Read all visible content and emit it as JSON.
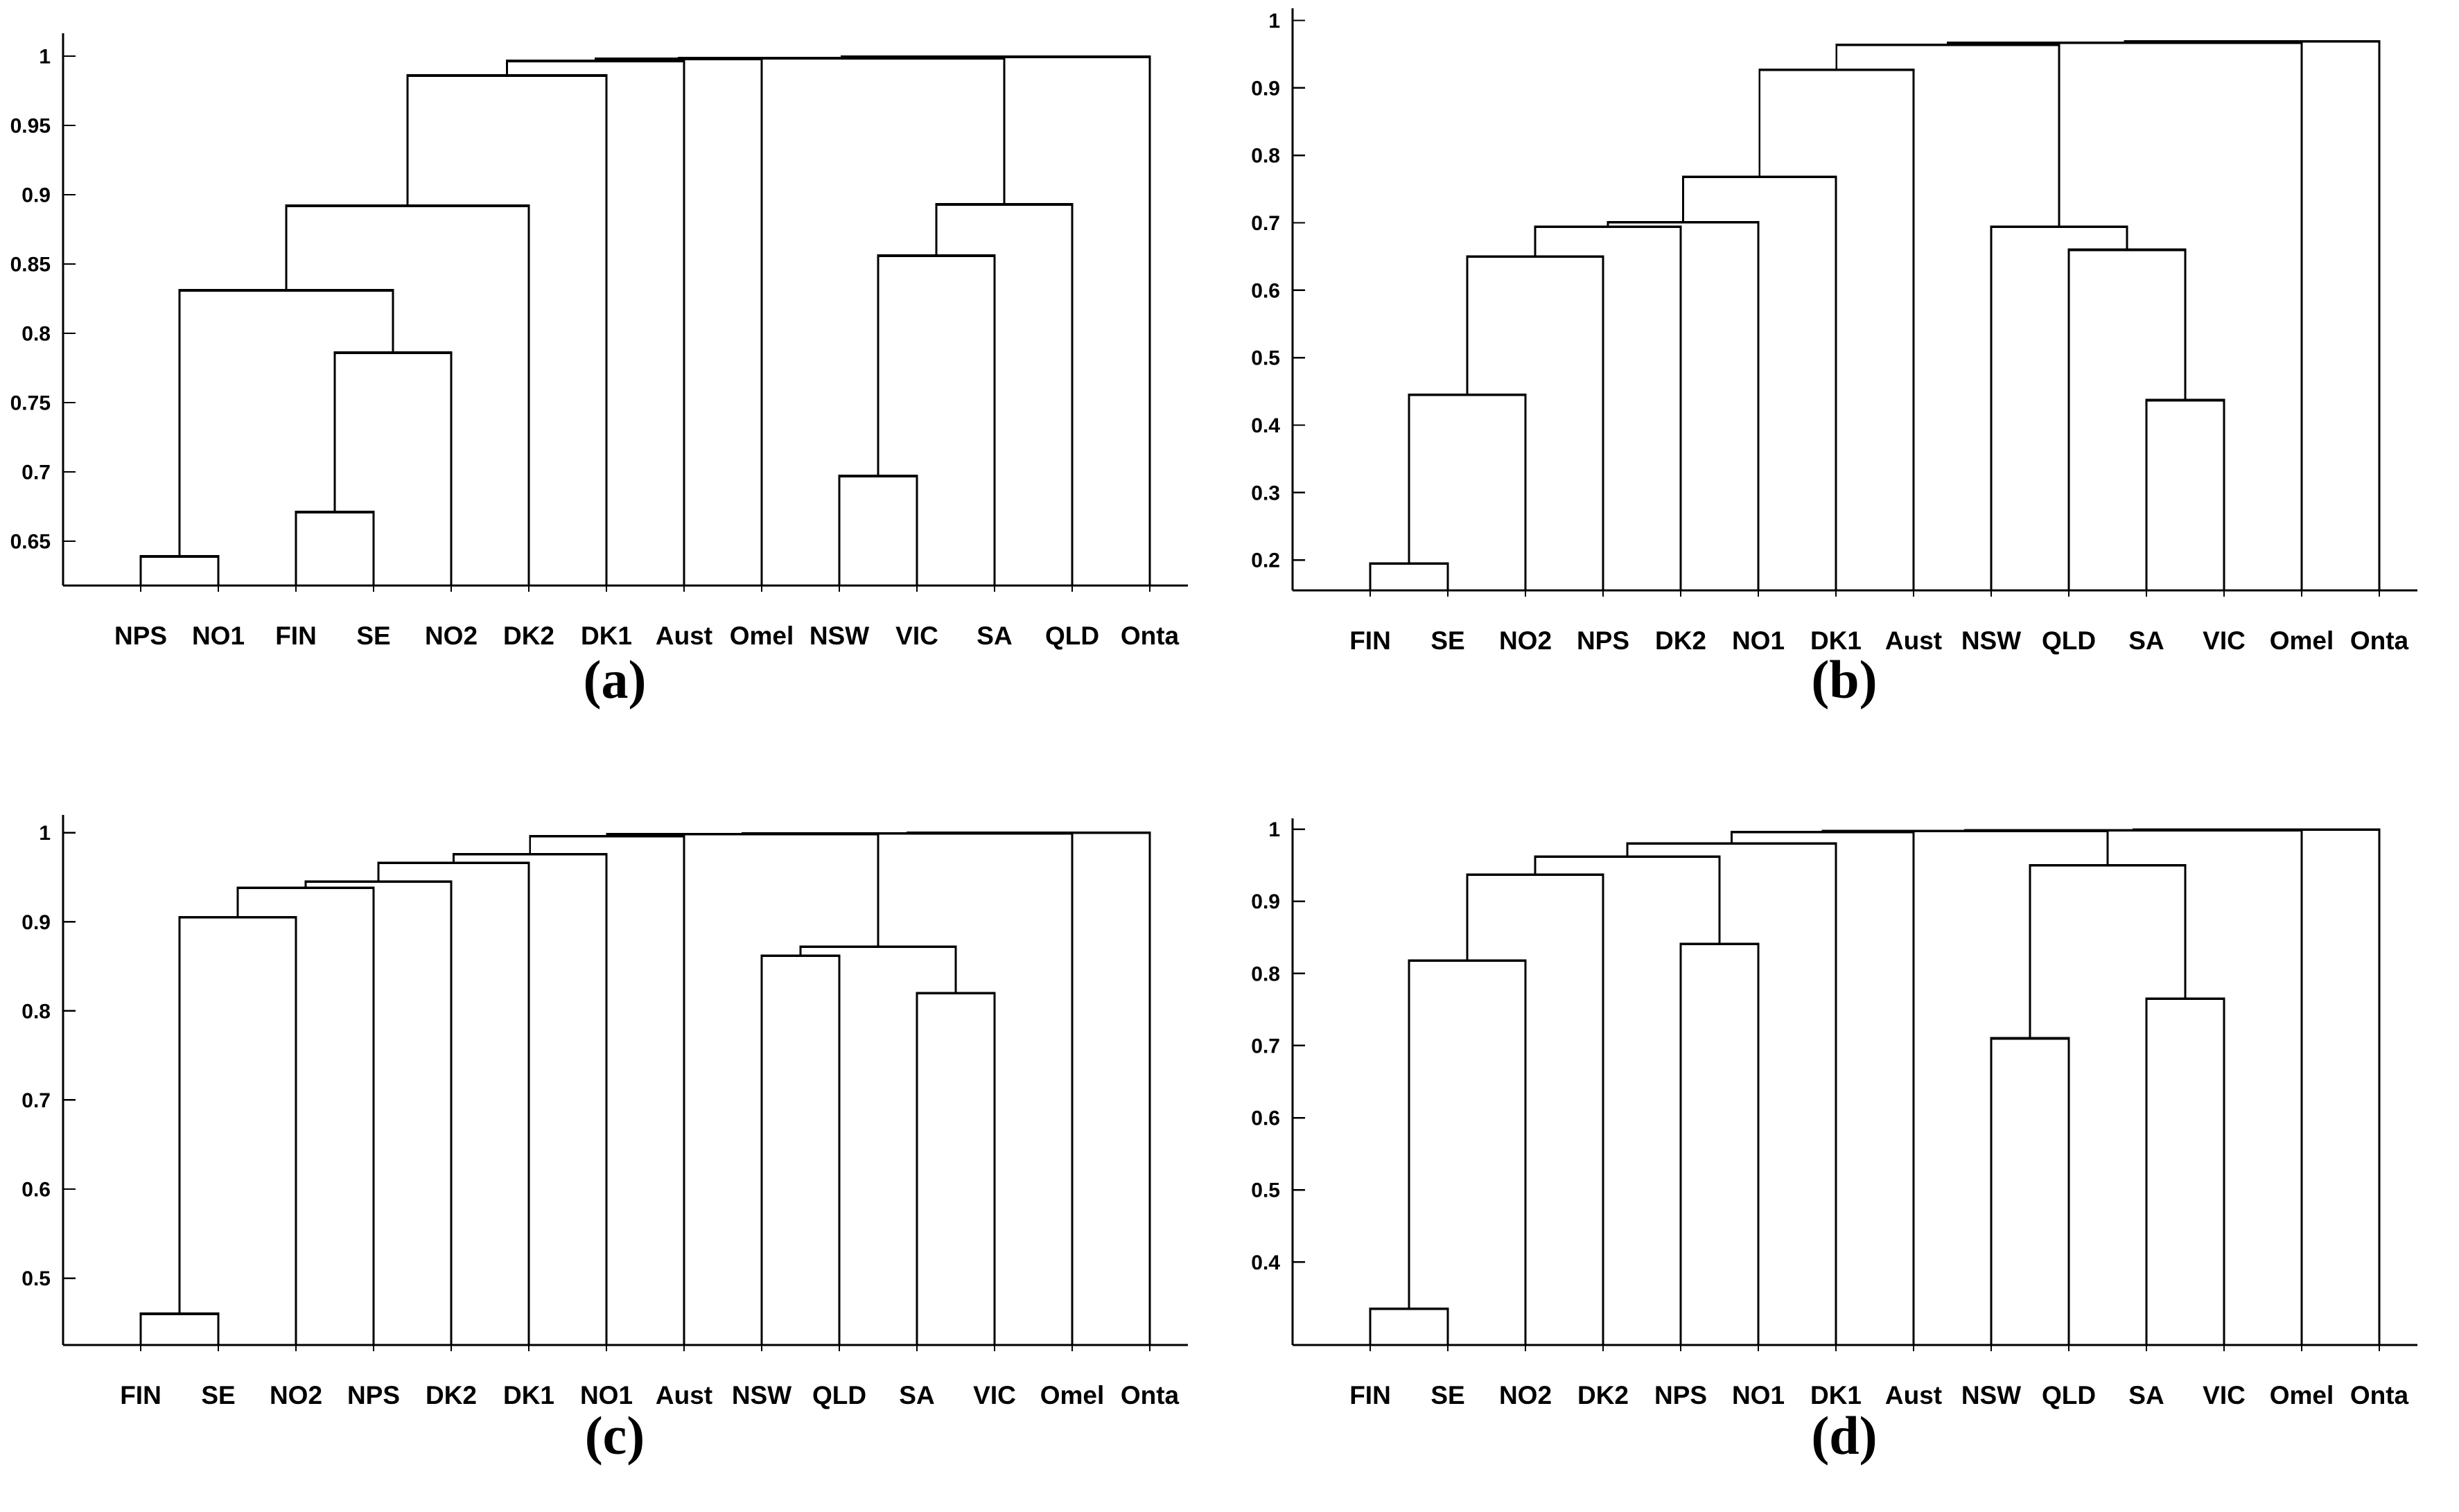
{
  "figure": {
    "background": "#ffffff",
    "line_color": "#000000",
    "text_color": "#000000"
  },
  "chart_data": {
    "type": "dendrogram",
    "grid": "2x2",
    "legend": "none",
    "gridlines": false,
    "panels": [
      {
        "id": "a",
        "caption": "(a)",
        "leaves": [
          "NPS",
          "NO1",
          "FIN",
          "SE",
          "NO2",
          "DK2",
          "DK1",
          "Aust",
          "Omel",
          "NSW",
          "VIC",
          "SA",
          "QLD",
          "Onta"
        ],
        "yticks": [
          "0.65",
          "0.7",
          "0.75",
          "0.8",
          "0.85",
          "0.9",
          "0.95",
          "1"
        ],
        "ymin": 0.618,
        "ymax": 1.0165,
        "merges": [
          [
            0,
            1,
            0.639
          ],
          [
            2,
            3,
            0.671
          ],
          [
            15,
            4,
            0.786
          ],
          [
            14,
            16,
            0.831
          ],
          [
            17,
            5,
            0.892
          ],
          [
            18,
            6,
            0.986
          ],
          [
            9,
            10,
            0.697
          ],
          [
            20,
            11,
            0.856
          ],
          [
            21,
            12,
            0.893
          ],
          [
            19,
            7,
            0.9965
          ],
          [
            23,
            8,
            0.998
          ],
          [
            24,
            22,
            0.9985
          ],
          [
            25,
            13,
            0.9995
          ]
        ]
      },
      {
        "id": "b",
        "caption": "(b)",
        "leaves": [
          "FIN",
          "SE",
          "NO2",
          "NPS",
          "DK2",
          "NO1",
          "DK1",
          "Aust",
          "NSW",
          "QLD",
          "SA",
          "VIC",
          "Omel",
          "Onta"
        ],
        "yticks": [
          "0.2",
          "0.3",
          "0.4",
          "0.5",
          "0.6",
          "0.7",
          "0.8",
          "0.9",
          "1"
        ],
        "ymin": 0.155,
        "ymax": 1.018,
        "merges": [
          [
            0,
            1,
            0.195
          ],
          [
            14,
            2,
            0.445
          ],
          [
            15,
            3,
            0.65
          ],
          [
            16,
            4,
            0.694
          ],
          [
            17,
            5,
            0.701
          ],
          [
            18,
            6,
            0.768
          ],
          [
            19,
            7,
            0.927
          ],
          [
            10,
            11,
            0.437
          ],
          [
            9,
            21,
            0.66
          ],
          [
            8,
            22,
            0.694
          ],
          [
            20,
            23,
            0.964
          ],
          [
            24,
            12,
            0.967
          ],
          [
            25,
            13,
            0.969
          ]
        ]
      },
      {
        "id": "c",
        "caption": "(c)",
        "leaves": [
          "FIN",
          "SE",
          "NO2",
          "NPS",
          "DK2",
          "DK1",
          "NO1",
          "Aust",
          "NSW",
          "QLD",
          "SA",
          "VIC",
          "Omel",
          "Onta"
        ],
        "yticks": [
          "0.5",
          "0.6",
          "0.7",
          "0.8",
          "0.9",
          "1"
        ],
        "ymin": 0.425,
        "ymax": 1.02,
        "merges": [
          [
            0,
            1,
            0.46
          ],
          [
            14,
            2,
            0.905
          ],
          [
            15,
            3,
            0.938
          ],
          [
            16,
            4,
            0.945
          ],
          [
            17,
            5,
            0.966
          ],
          [
            18,
            6,
            0.976
          ],
          [
            19,
            7,
            0.996
          ],
          [
            8,
            9,
            0.862
          ],
          [
            10,
            11,
            0.82
          ],
          [
            21,
            22,
            0.872
          ],
          [
            20,
            23,
            0.9985
          ],
          [
            24,
            12,
            0.9992
          ],
          [
            25,
            13,
            1.0
          ]
        ]
      },
      {
        "id": "d",
        "caption": "(d)",
        "leaves": [
          "FIN",
          "SE",
          "NO2",
          "DK2",
          "NPS",
          "NO1",
          "DK1",
          "Aust",
          "NSW",
          "QLD",
          "SA",
          "VIC",
          "Omel",
          "Onta"
        ],
        "yticks": [
          "0.4",
          "0.5",
          "0.6",
          "0.7",
          "0.8",
          "0.9",
          "1"
        ],
        "ymin": 0.285,
        "ymax": 1.015,
        "merges": [
          [
            0,
            1,
            0.335
          ],
          [
            14,
            2,
            0.818
          ],
          [
            15,
            3,
            0.937
          ],
          [
            4,
            5,
            0.841
          ],
          [
            16,
            17,
            0.962
          ],
          [
            18,
            6,
            0.98
          ],
          [
            19,
            7,
            0.996
          ],
          [
            8,
            9,
            0.71
          ],
          [
            10,
            11,
            0.765
          ],
          [
            21,
            22,
            0.95
          ],
          [
            20,
            23,
            0.9975
          ],
          [
            24,
            12,
            0.9985
          ],
          [
            25,
            13,
            0.9993
          ]
        ]
      }
    ]
  }
}
